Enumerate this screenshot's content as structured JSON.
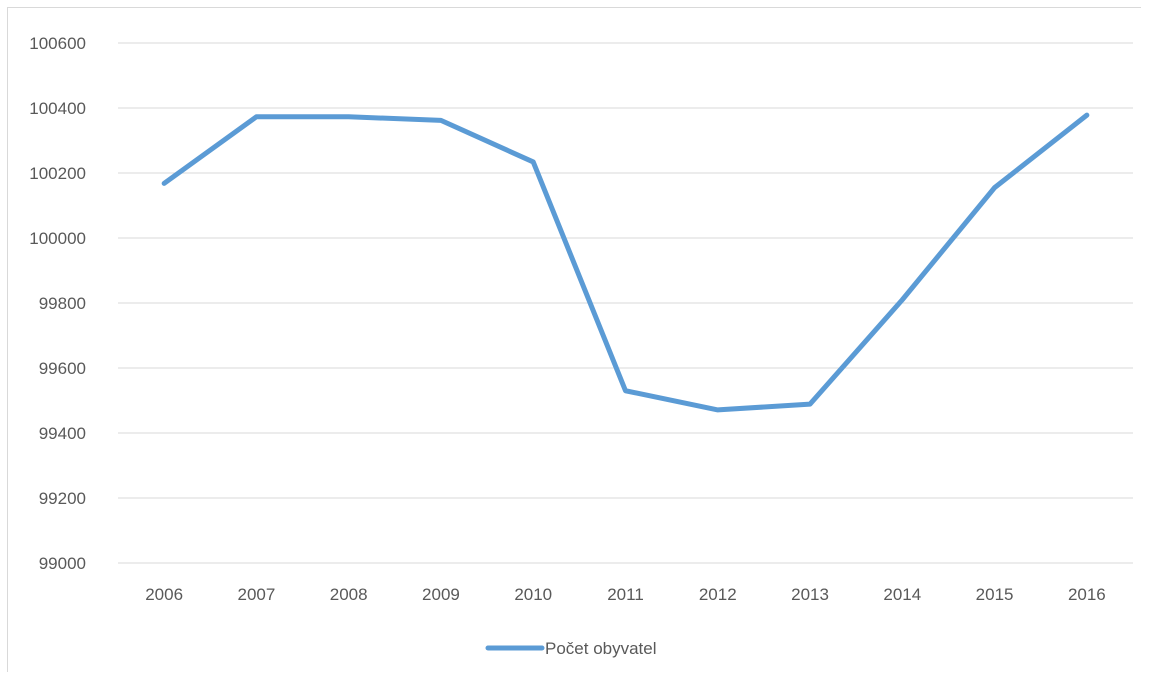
{
  "chart_data": {
    "type": "line",
    "title": "",
    "xlabel": "",
    "ylabel": "",
    "categories": [
      "2006",
      "2007",
      "2008",
      "2009",
      "2010",
      "2011",
      "2012",
      "2013",
      "2014",
      "2015",
      "2016"
    ],
    "series": [
      {
        "name": "Počet obyvatel",
        "color": "#5b9bd5",
        "values": [
          100168,
          100373,
          100373,
          100362,
          100234,
          99530,
          99471,
          99489,
          99810,
          100155,
          100378
        ]
      }
    ],
    "ylim": [
      99000,
      100600
    ],
    "yticks": [
      99000,
      99200,
      99400,
      99600,
      99800,
      100000,
      100200,
      100400,
      100600
    ],
    "grid": true,
    "legend_position": "bottom"
  }
}
